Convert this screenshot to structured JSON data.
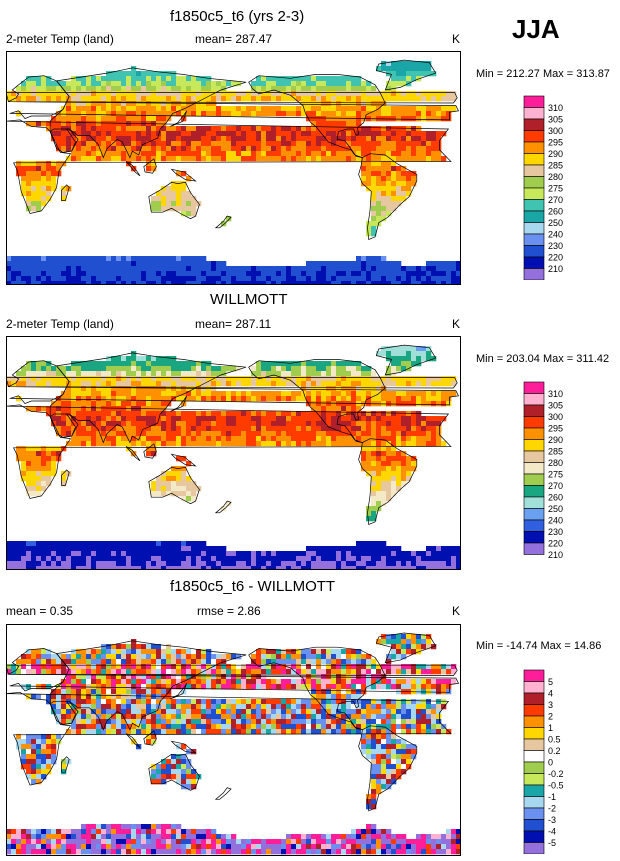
{
  "season": "JJA",
  "panels": [
    {
      "title": "f1850c5_t6 (yrs 2-3)",
      "left_label": "2-meter Temp (land)",
      "center_label": "mean= 287.47",
      "unit": "K",
      "minmax": "Min = 212.27 Max = 313.87"
    },
    {
      "title": "WILLMOTT",
      "left_label": "2-meter Temp (land)",
      "center_label": "mean= 287.11",
      "unit": "K",
      "minmax": "Min = 203.04 Max = 311.42"
    },
    {
      "title": "f1850c5_t6 - WILLMOTT",
      "left_label": "mean =   0.35",
      "center_label": "rmse =   2.86",
      "unit": "K",
      "minmax": "Min = -14.74 Max =  14.86"
    }
  ],
  "chart_data": [
    {
      "type": "heatmap",
      "title": "f1850c5_t6 (yrs 2-3)",
      "variable": "2-meter Temp (land)",
      "mean": 287.47,
      "min": 212.27,
      "max": 313.87,
      "unit": "K",
      "colorbar_labels": [
        "310",
        "305",
        "300",
        "295",
        "290",
        "285",
        "280",
        "275",
        "270",
        "260",
        "250",
        "240",
        "230",
        "220",
        "210"
      ],
      "colorbar_colors": [
        "#ff1e9a",
        "#ffb2cf",
        "#b0202a",
        "#ff3b00",
        "#ff9000",
        "#ffd700",
        "#e7c7a0",
        "#a0cd4d",
        "#c7e85a",
        "#40c3b0",
        "#1aa6a6",
        "#a8d8f0",
        "#6a90f0",
        "#2050d0",
        "#0010b0",
        "#9470dd"
      ]
    },
    {
      "type": "heatmap",
      "title": "WILLMOTT",
      "variable": "2-meter Temp (land)",
      "mean": 287.11,
      "min": 203.04,
      "max": 311.42,
      "unit": "K",
      "colorbar_labels": [
        "310",
        "305",
        "300",
        "295",
        "290",
        "285",
        "280",
        "275",
        "270",
        "260",
        "250",
        "240",
        "230",
        "220",
        "210"
      ],
      "colorbar_colors": [
        "#ff1e9a",
        "#ffb2cf",
        "#b0202a",
        "#ff3b00",
        "#ff9000",
        "#ffd700",
        "#e7c7a0",
        "#f3e9c7",
        "#a0cd4d",
        "#1aa680",
        "#a0e0d8",
        "#6aa0f0",
        "#3060e0",
        "#0010b0",
        "#9470dd"
      ]
    },
    {
      "type": "heatmap",
      "title": "f1850c5_t6 - WILLMOTT",
      "mean": 0.35,
      "rmse": 2.86,
      "min": -14.74,
      "max": 14.86,
      "unit": "K",
      "colorbar_labels": [
        "5",
        "4",
        "3",
        "2",
        "1",
        "0.5",
        "0.2",
        "0",
        "-0.2",
        "-0.5",
        "-1",
        "-2",
        "-3",
        "-4",
        "-5"
      ],
      "colorbar_colors": [
        "#ff1e9a",
        "#ffb2cf",
        "#b0202a",
        "#ff3b00",
        "#ff9000",
        "#ffd700",
        "#e7c7a0",
        "#ffffff",
        "#a0cd4d",
        "#c7e85a",
        "#1aa6a6",
        "#a8d8f0",
        "#6a90f0",
        "#2050d0",
        "#0010b0",
        "#9470dd"
      ]
    }
  ],
  "colors": {
    "ocean": "#ffffff",
    "frame": "#000000"
  }
}
